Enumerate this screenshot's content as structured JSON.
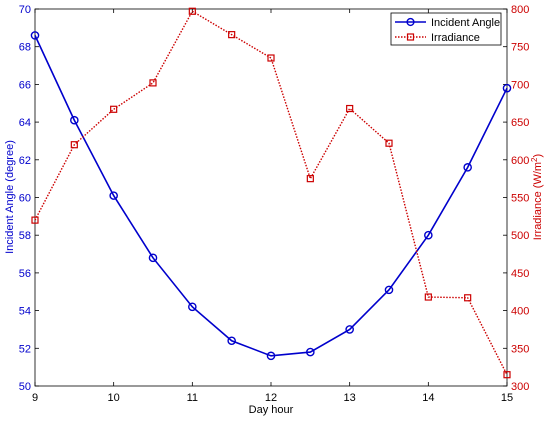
{
  "chart_data": {
    "type": "line",
    "x": [
      9,
      9.5,
      10,
      10.5,
      11,
      11.5,
      12,
      12.5,
      13,
      13.5,
      14,
      14.5,
      15
    ],
    "xlabel": "Day hour",
    "xlim": [
      9,
      15
    ],
    "xticks": [
      "9",
      "10",
      "11",
      "12",
      "13",
      "14",
      "15"
    ],
    "ylabel_left": "Incident Angle (degree)",
    "ylim_left": [
      50,
      70
    ],
    "yticks_left": [
      "50",
      "52",
      "54",
      "56",
      "58",
      "60",
      "62",
      "64",
      "66",
      "68",
      "70"
    ],
    "ylabel_right": "Irradiance (W/m",
    "ylabel_right_sup": "2",
    "ylabel_right_end": ")",
    "ylim_right": [
      300,
      800
    ],
    "yticks_right": [
      "300",
      "350",
      "400",
      "450",
      "500",
      "550",
      "600",
      "650",
      "700",
      "750",
      "800"
    ],
    "grid": false,
    "legend_position": "top-right",
    "series": [
      {
        "name": "Incident Angle",
        "axis": "left",
        "color": "#0000cc",
        "marker": "circle",
        "line": "solid",
        "values": [
          68.6,
          64.1,
          60.1,
          56.8,
          54.2,
          52.4,
          51.6,
          51.8,
          53.0,
          55.1,
          58.0,
          61.6,
          65.8
        ]
      },
      {
        "name": "Irradiance",
        "axis": "right",
        "color": "#cc0000",
        "marker": "square",
        "line": "dotted",
        "values": [
          520,
          620,
          667,
          702,
          797,
          766,
          735,
          575,
          668,
          622,
          418,
          417,
          315
        ]
      }
    ]
  }
}
